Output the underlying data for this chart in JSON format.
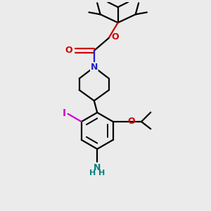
{
  "bg_color": "#ebebeb",
  "bond_color": "#000000",
  "N_color": "#2020cc",
  "O_color": "#cc0000",
  "I_color": "#cc00cc",
  "NH_color": "#008080",
  "line_width": 1.6,
  "fig_size": [
    3.0,
    3.0
  ],
  "dpi": 100,
  "xlim": [
    0,
    10
  ],
  "ylim": [
    0,
    10
  ]
}
